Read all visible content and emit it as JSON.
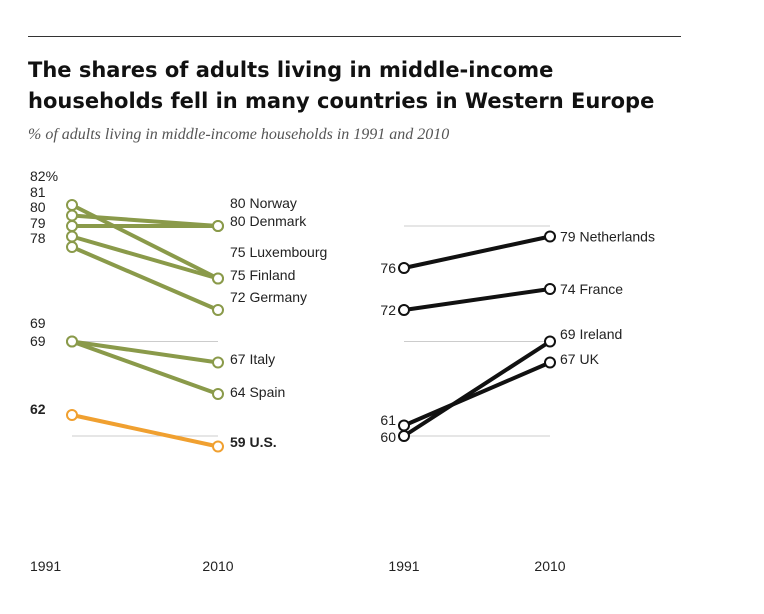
{
  "title_line1": "The shares of adults living in middle-income",
  "title_line2": "households fell in many countries in Western Europe",
  "subtitle": "% of adults living in middle-income households in 1991 and 2010",
  "colors": {
    "green": "#8a9a4a",
    "orange": "#f0a030",
    "black": "#111111",
    "grid": "#cccccc"
  },
  "chart_data": [
    {
      "type": "line",
      "chart": "slope",
      "x": [
        "1991",
        "2010"
      ],
      "series": [
        {
          "name": "Norway",
          "values": [
            81,
            80
          ],
          "label_1991": "81",
          "label_2010": "80 Norway",
          "color": "#8a9a4a"
        },
        {
          "name": "Denmark",
          "values": [
            80,
            80
          ],
          "label_1991": "80",
          "label_2010": "80 Denmark",
          "color": "#8a9a4a"
        },
        {
          "name": "Luxembourg",
          "values": [
            82,
            75
          ],
          "label_1991": "82%",
          "label_2010": "75 Luxembourg",
          "color": "#8a9a4a"
        },
        {
          "name": "Finland",
          "values": [
            79,
            75
          ],
          "label_1991": "79",
          "label_2010": "75 Finland",
          "color": "#8a9a4a"
        },
        {
          "name": "Germany",
          "values": [
            78,
            72
          ],
          "label_1991": "78",
          "label_2010": "72 Germany",
          "color": "#8a9a4a"
        },
        {
          "name": "Italy",
          "values": [
            69,
            67
          ],
          "label_1991": "69",
          "label_2010": "67 Italy",
          "color": "#8a9a4a"
        },
        {
          "name": "Spain",
          "values": [
            69,
            64
          ],
          "label_1991": "69",
          "label_2010": "64 Spain",
          "color": "#8a9a4a"
        },
        {
          "name": "U.S.",
          "values": [
            62,
            59
          ],
          "label_1991": "62",
          "label_2010": "59 U.S.",
          "color": "#f0a030",
          "bold": true
        }
      ]
    },
    {
      "type": "line",
      "chart": "slope",
      "x": [
        "1991",
        "2010"
      ],
      "series": [
        {
          "name": "Netherlands",
          "values": [
            76,
            79
          ],
          "label_1991": "76",
          "label_2010": "79 Netherlands",
          "color": "#111111"
        },
        {
          "name": "France",
          "values": [
            72,
            74
          ],
          "label_1991": "72",
          "label_2010": "74 France",
          "color": "#111111"
        },
        {
          "name": "Ireland",
          "values": [
            60,
            69
          ],
          "label_1991": "60",
          "label_2010": "69 Ireland",
          "color": "#111111"
        },
        {
          "name": "UK",
          "values": [
            61,
            67
          ],
          "label_1991": "61",
          "label_2010": "67 UK",
          "color": "#111111"
        }
      ]
    }
  ]
}
